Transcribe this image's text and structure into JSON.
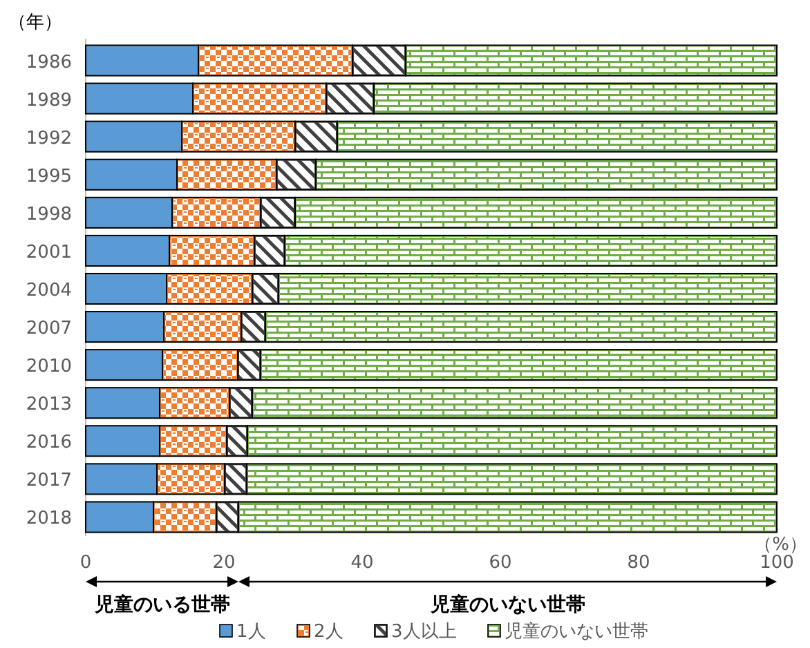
{
  "chart_data": {
    "type": "bar",
    "orientation": "horizontal",
    "stacked": true,
    "ylabel": "（年）",
    "xlabel": "（%）",
    "categories": [
      "1986",
      "1989",
      "1992",
      "1995",
      "1998",
      "2001",
      "2004",
      "2007",
      "2010",
      "2013",
      "2016",
      "2017",
      "2018"
    ],
    "series": [
      {
        "name": "1人",
        "color": "#5b9bd5",
        "values": [
          16.3,
          15.5,
          13.9,
          13.2,
          12.5,
          12.1,
          11.7,
          11.3,
          11.1,
          10.7,
          10.7,
          10.3,
          9.8
        ]
      },
      {
        "name": "2人",
        "color": "#ed7d31",
        "values": [
          22.3,
          19.3,
          16.4,
          14.4,
          12.8,
          12.3,
          12.4,
          11.2,
          10.9,
          10.1,
          9.7,
          9.8,
          9.1
        ]
      },
      {
        "name": "3人以上",
        "color": "#404040",
        "values": [
          7.7,
          6.9,
          6.1,
          5.7,
          5.0,
          4.4,
          3.8,
          3.5,
          3.3,
          3.3,
          3.0,
          3.2,
          3.2
        ]
      },
      {
        "name": "児童のいない世帯",
        "color": "#70ad47",
        "values": [
          53.7,
          58.3,
          63.6,
          66.7,
          69.7,
          71.2,
          72.1,
          74.0,
          74.7,
          75.9,
          76.6,
          76.7,
          77.9
        ]
      }
    ],
    "xlim": [
      0,
      100
    ],
    "xticks": [
      0,
      20,
      40,
      60,
      80,
      100
    ],
    "grid": false,
    "legend": "bottom",
    "annotations": [
      "児童のいる世帯",
      "児童のいない世帯"
    ]
  }
}
